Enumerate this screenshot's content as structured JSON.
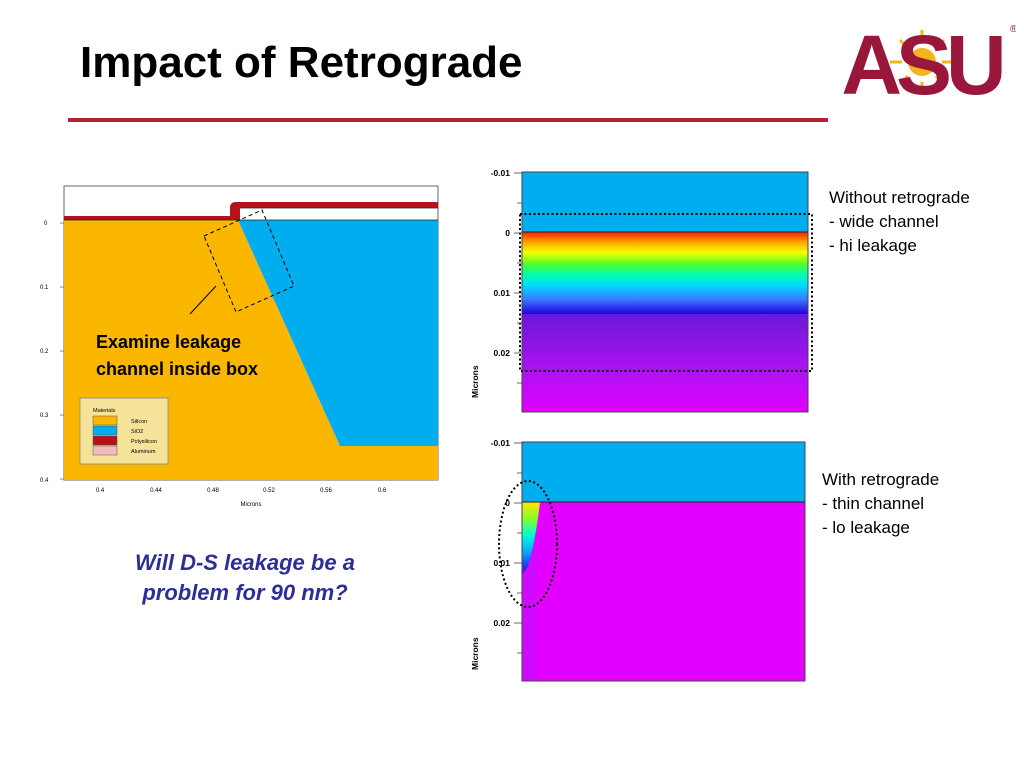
{
  "slide": {
    "title": "Impact of Retrograde",
    "question": [
      "Will D-S leakage be a",
      "problem for 90 nm?"
    ]
  },
  "logo": {
    "text": "ASU",
    "mark": "®"
  },
  "cross_section": {
    "callout": [
      "Examine leakage",
      "channel inside box"
    ],
    "xlabel": "Microns",
    "x_ticks": [
      "0.4",
      "0.44",
      "0.48",
      "0.52",
      "0.56",
      "0.6"
    ],
    "y_ticks": [
      "0",
      "0.1",
      "0.2",
      "0.3",
      "0.4"
    ],
    "legend_title": "Materials",
    "legend": [
      {
        "name": "Silicon",
        "color": "#fbb600"
      },
      {
        "name": "SiO2",
        "color": "#00adef"
      },
      {
        "name": "Polysilicon",
        "color": "#b5121b"
      },
      {
        "name": "Aluminum",
        "color": "#f0bcbc"
      }
    ]
  },
  "plot_top": {
    "ylabel": "Microns",
    "y_ticks": [
      "-0.01",
      "0",
      "0.01",
      "0.02"
    ],
    "notes": [
      "Without retrograde",
      "-  wide channel",
      "-  hi leakage"
    ]
  },
  "plot_bottom": {
    "ylabel": "Microns",
    "y_ticks": [
      "-0.01",
      "0",
      "0.01",
      "0.02"
    ],
    "notes": [
      "With retrograde",
      "-  thin channel",
      "-  lo leakage"
    ]
  },
  "colors": {
    "accent": "#b3202f",
    "oxide": "#00adef",
    "silicon": "#fbb600",
    "substrate": "#e300ff",
    "question_text": "#2d2d9a"
  }
}
